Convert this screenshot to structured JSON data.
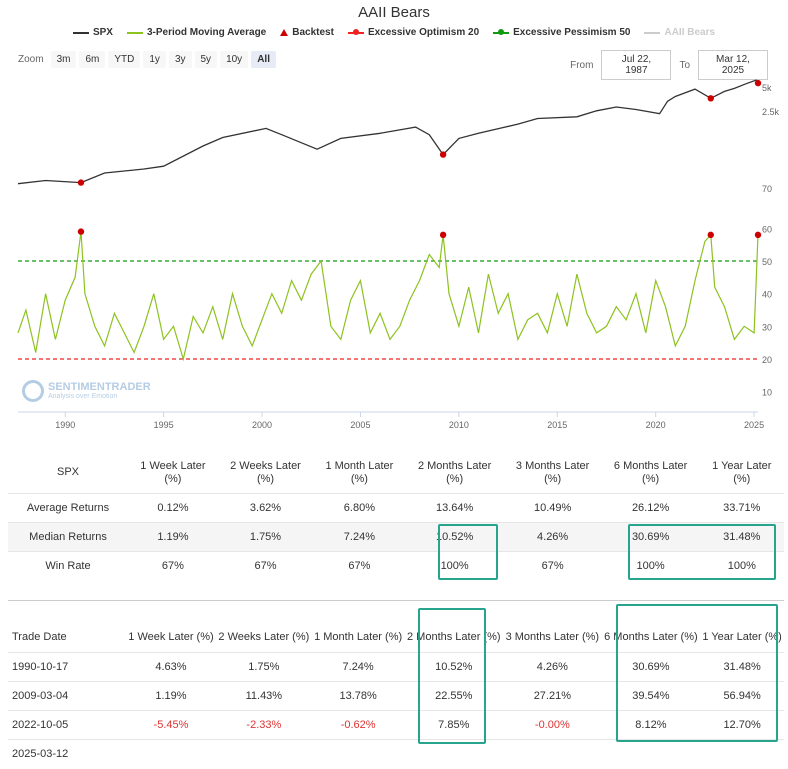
{
  "title": "AAII Bears",
  "legend": [
    {
      "label": "SPX",
      "color": "#333333",
      "kind": "line"
    },
    {
      "label": "3-Period Moving Average",
      "color": "#8dc21f",
      "kind": "line"
    },
    {
      "label": "Backtest",
      "color": "#cc0000",
      "kind": "triangle"
    },
    {
      "label": "Excessive Optimism 20",
      "color": "#ee2222",
      "kind": "dash"
    },
    {
      "label": "Excessive Pessimism 50",
      "color": "#119911",
      "kind": "dash"
    },
    {
      "label": "AAII Bears",
      "color": "#cccccc",
      "kind": "line"
    }
  ],
  "zoom": {
    "label": "Zoom",
    "buttons": [
      "3m",
      "6m",
      "YTD",
      "1y",
      "3y",
      "5y",
      "10y",
      "All"
    ],
    "active": "All"
  },
  "range": {
    "from_label": "From",
    "from": "Jul 22, 1987",
    "to_label": "To",
    "to": "Mar 12, 2025"
  },
  "watermark": {
    "name": "SENTIMENTRADER",
    "tagline": "Analysis over Emotion"
  },
  "chart_data": [
    {
      "type": "line",
      "name": "SPX",
      "yscale": "log",
      "ytick_labels": [
        "5k",
        "2.5k",
        "70"
      ],
      "x": [
        1987.6,
        1989,
        1990.8,
        1992,
        1994,
        1995,
        1997,
        1998,
        2000.2,
        2001,
        2002.8,
        2004,
        2006,
        2007.8,
        2008.5,
        2009.2,
        2010,
        2011,
        2013,
        2014,
        2016,
        2017,
        2018,
        2019,
        2020.2,
        2020.6,
        2021,
        2022.0,
        2022.8,
        2023.5,
        2024,
        2024.6,
        2025.1,
        2025.2
      ],
      "y": [
        300,
        330,
        310,
        410,
        460,
        500,
        900,
        1150,
        1500,
        1250,
        820,
        1120,
        1300,
        1560,
        1250,
        700,
        1120,
        1300,
        1700,
        2000,
        2100,
        2500,
        2800,
        2600,
        2300,
        3300,
        3800,
        4700,
        3600,
        4400,
        4800,
        5500,
        6100,
        5600
      ],
      "backtest_points": [
        {
          "x": 1990.8,
          "y": 310
        },
        {
          "x": 2009.2,
          "y": 700
        },
        {
          "x": 2022.8,
          "y": 3600
        },
        {
          "x": 2025.2,
          "y": 5600
        }
      ]
    },
    {
      "type": "line",
      "name": "3-Period Moving Average",
      "ytick_labels": [
        "60",
        "50",
        "40",
        "30",
        "20",
        "10"
      ],
      "xtick_labels": [
        "1990",
        "1995",
        "2000",
        "2005",
        "2010",
        "2015",
        "2020",
        "2025"
      ],
      "x_range": [
        1987.6,
        2025.2
      ],
      "y_range": [
        5,
        65
      ],
      "excessive_optimism": 20,
      "excessive_pessimism": 50,
      "x": [
        1987.6,
        1988,
        1988.5,
        1989,
        1989.5,
        1990,
        1990.5,
        1990.8,
        1991,
        1991.5,
        1992,
        1992.5,
        1993,
        1993.5,
        1994,
        1994.5,
        1995,
        1995.5,
        1996,
        1996.5,
        1997,
        1997.5,
        1998,
        1998.5,
        1999,
        1999.5,
        2000,
        2000.5,
        2001,
        2001.5,
        2002,
        2002.5,
        2003,
        2003.5,
        2004,
        2004.5,
        2005,
        2005.5,
        2006,
        2006.5,
        2007,
        2007.5,
        2008,
        2008.5,
        2009,
        2009.2,
        2009.5,
        2010,
        2010.5,
        2011,
        2011.5,
        2012,
        2012.5,
        2013,
        2013.5,
        2014,
        2014.5,
        2015,
        2015.5,
        2016,
        2016.5,
        2017,
        2017.5,
        2018,
        2018.5,
        2019,
        2019.5,
        2020,
        2020.5,
        2021,
        2021.5,
        2022,
        2022.5,
        2022.8,
        2023,
        2023.5,
        2024,
        2024.5,
        2025,
        2025.2
      ],
      "y": [
        28,
        35,
        22,
        40,
        26,
        38,
        45,
        59,
        40,
        30,
        24,
        34,
        28,
        22,
        30,
        40,
        26,
        30,
        20,
        33,
        28,
        36,
        26,
        40,
        30,
        24,
        32,
        40,
        34,
        44,
        38,
        46,
        50,
        30,
        26,
        38,
        44,
        28,
        34,
        26,
        30,
        38,
        44,
        52,
        48,
        58,
        40,
        30,
        42,
        28,
        46,
        34,
        40,
        26,
        32,
        34,
        28,
        40,
        30,
        46,
        34,
        28,
        30,
        36,
        32,
        40,
        28,
        44,
        36,
        24,
        30,
        44,
        56,
        58,
        42,
        36,
        26,
        30,
        28,
        58
      ]
    }
  ],
  "summary_table": {
    "headers": [
      "SPX",
      "1 Week Later (%)",
      "2 Weeks Later (%)",
      "1 Month Later (%)",
      "2 Months Later (%)",
      "3 Months Later (%)",
      "6 Months Later (%)",
      "1 Year Later (%)"
    ],
    "rows": [
      [
        "Average Returns",
        "0.12%",
        "3.62%",
        "6.80%",
        "13.64%",
        "10.49%",
        "26.12%",
        "33.71%"
      ],
      [
        "Median Returns",
        "1.19%",
        "1.75%",
        "7.24%",
        "10.52%",
        "4.26%",
        "30.69%",
        "31.48%"
      ],
      [
        "Win Rate",
        "67%",
        "67%",
        "67%",
        "100%",
        "67%",
        "100%",
        "100%"
      ]
    ]
  },
  "trades_table": {
    "headers": [
      "Trade Date",
      "1 Week Later (%)",
      "2 Weeks Later (%)",
      "1 Month Later (%)",
      "2 Months Later (%)",
      "3 Months Later (%)",
      "6 Months Later (%)",
      "1 Year Later (%)"
    ],
    "rows": [
      [
        "1990-10-17",
        "4.63%",
        "1.75%",
        "7.24%",
        "10.52%",
        "4.26%",
        "30.69%",
        "31.48%"
      ],
      [
        "2009-03-04",
        "1.19%",
        "11.43%",
        "13.78%",
        "22.55%",
        "27.21%",
        "39.54%",
        "56.94%"
      ],
      [
        "2022-10-05",
        "-5.45%",
        "-2.33%",
        "-0.62%",
        "7.85%",
        "-0.00%",
        "8.12%",
        "12.70%"
      ],
      [
        "2025-03-12",
        "",
        "",
        "",
        "",
        "",
        "",
        ""
      ]
    ]
  }
}
